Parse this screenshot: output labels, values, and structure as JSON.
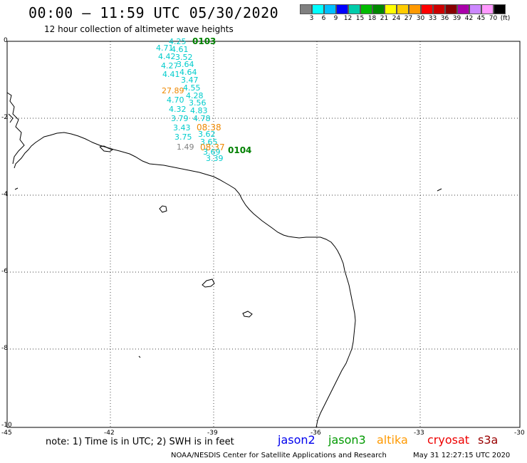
{
  "header": {
    "title": "00:00 – 11:59 UTC 05/30/2020",
    "subtitle": "12 hour collection of altimeter wave heights"
  },
  "colorbar": {
    "colors": [
      "#808080",
      "#00ffff",
      "#00bfff",
      "#0000ff",
      "#00ccaa",
      "#00bb00",
      "#008800",
      "#ffff00",
      "#ffcc00",
      "#ff9900",
      "#ff0000",
      "#cc0000",
      "#880000",
      "#aa00aa",
      "#cc88ff",
      "#ff99ff",
      "#000000"
    ],
    "labels": [
      "3",
      "6",
      "9",
      "12",
      "15",
      "18",
      "21",
      "24",
      "27",
      "30",
      "33",
      "36",
      "39",
      "42",
      "45",
      "70",
      "(ft)"
    ]
  },
  "axes": {
    "x_ticks": [
      "-45",
      "-42",
      "-39",
      "-36",
      "-33",
      "-30"
    ],
    "y_ticks": [
      "0",
      "-2",
      "-4",
      "-6",
      "-8",
      "-10"
    ]
  },
  "observations": [
    {
      "value": "4.25",
      "color": "#00cccc"
    },
    {
      "value": "4.71",
      "color": "#00cccc"
    },
    {
      "value": "4.61",
      "color": "#00cccc"
    },
    {
      "value": "4.42",
      "color": "#00cccc"
    },
    {
      "value": "3.52",
      "color": "#00cccc"
    },
    {
      "value": "4.27",
      "color": "#00cccc"
    },
    {
      "value": "3.64",
      "color": "#00cccc"
    },
    {
      "value": "4.41",
      "color": "#00cccc"
    },
    {
      "value": "4.64",
      "color": "#00cccc"
    },
    {
      "value": "3.47",
      "color": "#00cccc"
    },
    {
      "value": "4.55",
      "color": "#00cccc"
    },
    {
      "value": "27.89",
      "color": "#ee8800"
    },
    {
      "value": "4.28",
      "color": "#00cccc"
    },
    {
      "value": "4.70",
      "color": "#00cccc"
    },
    {
      "value": "3.56",
      "color": "#00cccc"
    },
    {
      "value": "4.32",
      "color": "#00cccc"
    },
    {
      "value": "4.83",
      "color": "#00cccc"
    },
    {
      "value": "3.79",
      "color": "#00cccc"
    },
    {
      "value": "4.78",
      "color": "#00cccc"
    },
    {
      "value": "3.43",
      "color": "#00cccc"
    },
    {
      "value": "08:38",
      "color": "#ee8800"
    },
    {
      "value": "3.62",
      "color": "#00cccc"
    },
    {
      "value": "3.75",
      "color": "#00cccc"
    },
    {
      "value": "3.65",
      "color": "#00cccc"
    },
    {
      "value": "1.49",
      "color": "#808080"
    },
    {
      "value": "08:37",
      "color": "#ee8800"
    },
    {
      "value": "3.69",
      "color": "#00cccc"
    },
    {
      "value": "3.39",
      "color": "#00cccc"
    }
  ],
  "pass_labels": [
    "0103",
    "0104"
  ],
  "footer": {
    "note": "note: 1) Time is in UTC; 2) SWH is in feet",
    "satellites": [
      {
        "name": "jason2",
        "color": "#0000ee"
      },
      {
        "name": "jason3",
        "color": "#009900"
      },
      {
        "name": "altika",
        "color": "#ff9900"
      },
      {
        "name": "cryosat",
        "color": "#ee0000"
      },
      {
        "name": "s3a",
        "color": "#990000"
      }
    ],
    "credit": "NOAA/NESDIS Center for Satellite Applications and Research",
    "timestamp": "May 31 12:27:15 UTC 2020"
  }
}
